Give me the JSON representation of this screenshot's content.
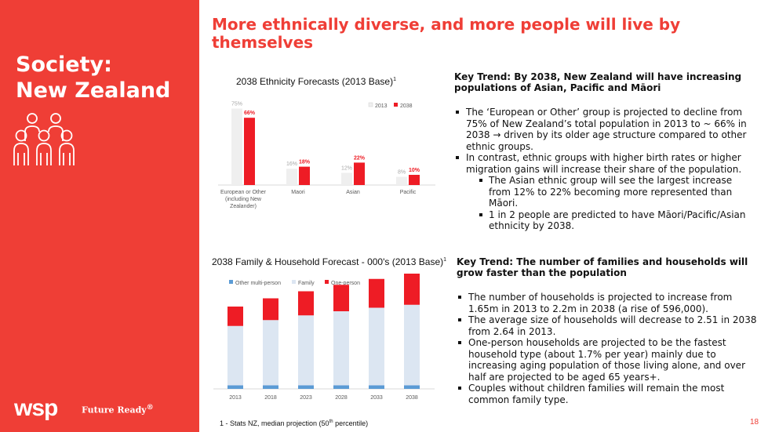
{
  "sidebar": {
    "title_line1": "Society:",
    "title_line2": "New Zealand",
    "icon": "people-group-icon",
    "logo": "wsp-logo",
    "tagline": "Future Ready",
    "tagline_mark": "®"
  },
  "headline": "More ethnically diverse, and more people will live by themselves",
  "chart_data": [
    {
      "type": "bar",
      "title": "2038 Ethnicity Forecasts (2013 Base)",
      "title_note": "1",
      "categories": [
        "European or Other (including New Zealander)",
        "Maori",
        "Asian",
        "Pacific"
      ],
      "category_lines": [
        [
          "European or Other",
          "(including New",
          "Zealander)"
        ],
        [
          "Maori"
        ],
        [
          "Asian"
        ],
        [
          "Pacific"
        ]
      ],
      "series": [
        {
          "name": "2013",
          "values": [
            75,
            16,
            12,
            8
          ],
          "labels": [
            "75%",
            "16%",
            "12%",
            "8%"
          ],
          "color": "#efefef"
        },
        {
          "name": "2038",
          "values": [
            66,
            18,
            22,
            10
          ],
          "labels": [
            "66%",
            "18%",
            "22%",
            "10%"
          ],
          "color": "#ee1c25"
        }
      ],
      "ylim": [
        0,
        80
      ],
      "legend": "top-right",
      "grid": false
    },
    {
      "type": "bar",
      "stacked": true,
      "title": "2038 Family & Household Forecast - 000's (2013 Base)",
      "title_note": "1",
      "categories": [
        "2013",
        "2018",
        "2023",
        "2028",
        "2033",
        "2038"
      ],
      "series": [
        {
          "name": "Other multi-person",
          "values": [
            60,
            60,
            60,
            60,
            60,
            60
          ],
          "color": "#5b9bd5"
        },
        {
          "name": "Family",
          "values": [
            1010,
            1110,
            1190,
            1260,
            1320,
            1370
          ],
          "color": "#dce6f2"
        },
        {
          "name": "One-person",
          "values": [
            330,
            370,
            410,
            450,
            490,
            530
          ],
          "color": "#ee1c25"
        }
      ],
      "ylim": [
        0,
        2000
      ],
      "legend": "top-left",
      "grid": false
    }
  ],
  "section1": {
    "heading": "Key Trend: By 2038, New Zealand will have increasing populations of Asian, Pacific and Māori",
    "bullets": [
      {
        "text": "The ‘European or Other’ group is projected to decline from 75% of New Zealand’s total population in 2013 to ~ 66% in 2038 → driven by its older age structure compared to other ethnic groups.",
        "level": 1
      },
      {
        "text": "In contrast, ethnic groups with higher birth rates or higher migration gains will increase their share of the population.",
        "level": 1
      },
      {
        "text": "The Asian ethnic group will see the largest increase from 12% to 22% becoming more represented than Māori.",
        "level": 2
      },
      {
        "text": "1 in 2 people are predicted to have Māori/Pacific/Asian ethnicity by 2038.",
        "level": 2
      }
    ]
  },
  "section2": {
    "heading": "Key Trend: The number of families and households will grow faster than the population",
    "bullets": [
      {
        "text": "The number of households is projected to increase from 1.65m in 2013 to 2.2m in 2038 (a rise of 596,000).",
        "level": 1
      },
      {
        "text": "The average size of households will decrease to 2.51 in 2038 from 2.64 in 2013.",
        "level": 1
      },
      {
        "text": "One-person households are projected to be the fastest household type (about 1.7% per year) mainly due to increasing aging population of those living alone, and over half are projected to be aged 65 years+.",
        "level": 1
      },
      {
        "text": "Couples without children families will remain the most common family type.",
        "level": 1
      }
    ]
  },
  "footnote": {
    "prefix": "1 - Stats NZ, median projection (50",
    "sup": "th",
    "suffix": " percentile)"
  },
  "page_number": "18"
}
